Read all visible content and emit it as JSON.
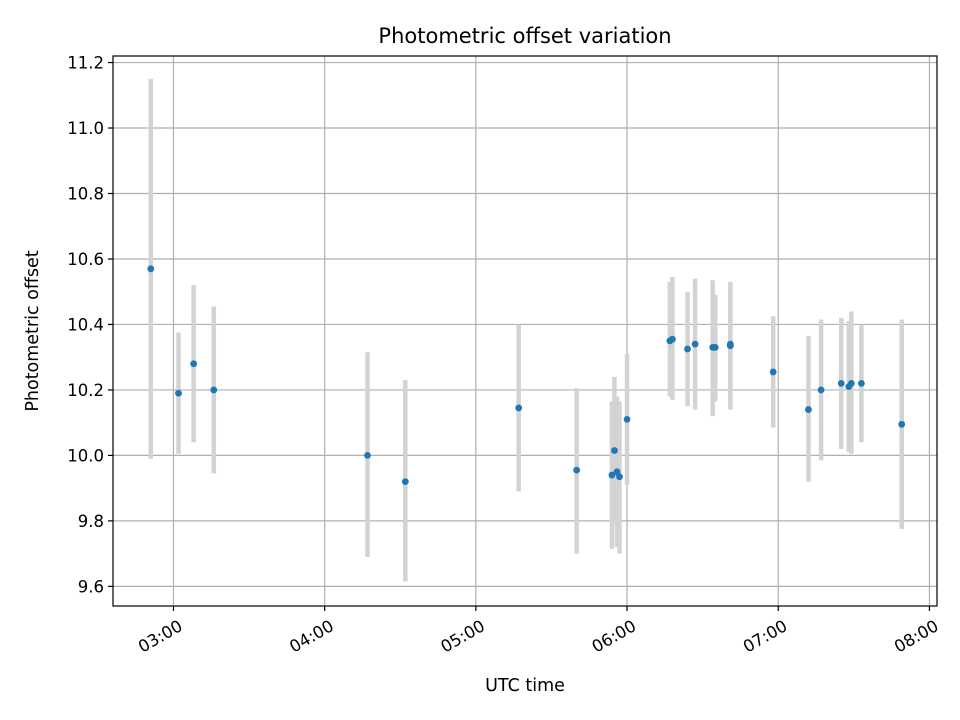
{
  "chart_data": {
    "type": "scatter",
    "title": "Photometric offset variation",
    "xlabel": "UTC time",
    "ylabel": "Photometric offset",
    "x_axis_type": "time",
    "xlim": [
      "02:36",
      "08:03"
    ],
    "ylim": [
      9.54,
      11.22
    ],
    "x_ticks": [
      "03:00",
      "04:00",
      "05:00",
      "06:00",
      "07:00",
      "08:00"
    ],
    "y_ticks": [
      9.6,
      9.8,
      10.0,
      10.2,
      10.4,
      10.6,
      10.8,
      11.0,
      11.2
    ],
    "grid": true,
    "legend": "none",
    "colors": {
      "point": "#1f77b4",
      "errorbar": "#d3d3d3",
      "grid": "#b0b0b0"
    },
    "points": [
      {
        "x": "02:51",
        "y": 10.57,
        "ylow": 9.99,
        "yhigh": 11.15
      },
      {
        "x": "03:02",
        "y": 10.19,
        "ylow": 10.005,
        "yhigh": 10.375
      },
      {
        "x": "03:08",
        "y": 10.28,
        "ylow": 10.04,
        "yhigh": 10.52
      },
      {
        "x": "03:16",
        "y": 10.2,
        "ylow": 9.945,
        "yhigh": 10.455
      },
      {
        "x": "04:17",
        "y": 10.0,
        "ylow": 9.69,
        "yhigh": 10.315
      },
      {
        "x": "04:32",
        "y": 9.92,
        "ylow": 9.615,
        "yhigh": 10.23
      },
      {
        "x": "05:17",
        "y": 10.145,
        "ylow": 9.89,
        "yhigh": 10.4
      },
      {
        "x": "05:40",
        "y": 9.955,
        "ylow": 9.7,
        "yhigh": 10.205
      },
      {
        "x": "05:54",
        "y": 9.94,
        "ylow": 9.715,
        "yhigh": 10.165
      },
      {
        "x": "05:55",
        "y": 10.015,
        "ylow": 9.79,
        "yhigh": 10.24
      },
      {
        "x": "05:56",
        "y": 9.95,
        "ylow": 9.72,
        "yhigh": 10.18
      },
      {
        "x": "05:57",
        "y": 9.935,
        "ylow": 9.7,
        "yhigh": 10.165
      },
      {
        "x": "06:00",
        "y": 10.11,
        "ylow": 9.91,
        "yhigh": 10.31
      },
      {
        "x": "06:17",
        "y": 10.35,
        "ylow": 10.18,
        "yhigh": 10.53
      },
      {
        "x": "06:18",
        "y": 10.355,
        "ylow": 10.17,
        "yhigh": 10.545
      },
      {
        "x": "06:24",
        "y": 10.325,
        "ylow": 10.15,
        "yhigh": 10.5
      },
      {
        "x": "06:27",
        "y": 10.34,
        "ylow": 10.14,
        "yhigh": 10.54
      },
      {
        "x": "06:34",
        "y": 10.33,
        "ylow": 10.12,
        "yhigh": 10.535
      },
      {
        "x": "06:35",
        "y": 10.33,
        "ylow": 10.165,
        "yhigh": 10.49
      },
      {
        "x": "06:41",
        "y": 10.34,
        "ylow": 10.15,
        "yhigh": 10.53
      },
      {
        "x": "06:41",
        "y": 10.335,
        "ylow": 10.14,
        "yhigh": 10.525
      },
      {
        "x": "06:58",
        "y": 10.255,
        "ylow": 10.085,
        "yhigh": 10.425
      },
      {
        "x": "07:12",
        "y": 10.14,
        "ylow": 9.92,
        "yhigh": 10.365
      },
      {
        "x": "07:17",
        "y": 10.2,
        "ylow": 9.985,
        "yhigh": 10.415
      },
      {
        "x": "07:25",
        "y": 10.22,
        "ylow": 10.02,
        "yhigh": 10.42
      },
      {
        "x": "07:28",
        "y": 10.21,
        "ylow": 10.01,
        "yhigh": 10.41
      },
      {
        "x": "07:29",
        "y": 10.22,
        "ylow": 10.005,
        "yhigh": 10.44
      },
      {
        "x": "07:33",
        "y": 10.22,
        "ylow": 10.04,
        "yhigh": 10.4
      },
      {
        "x": "07:49",
        "y": 10.095,
        "ylow": 9.775,
        "yhigh": 10.415
      }
    ]
  }
}
